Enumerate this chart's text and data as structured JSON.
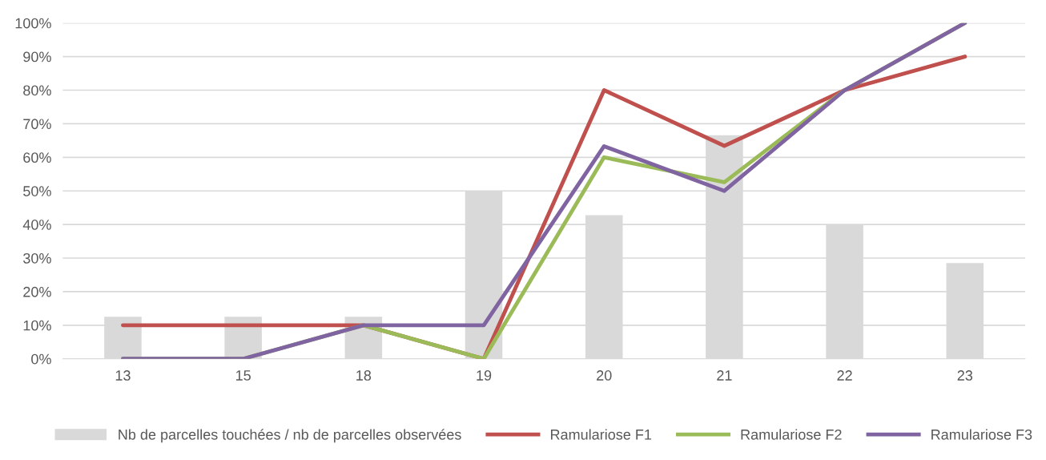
{
  "chart_data": {
    "type": "line",
    "categories": [
      "13",
      "15",
      "18",
      "19",
      "20",
      "21",
      "22",
      "23"
    ],
    "series": [
      {
        "name": "Nb de parcelles touchées / nb de parcelles observées",
        "type": "bar",
        "color": "#d9d9d9",
        "values": [
          12.5,
          12.5,
          12.5,
          50,
          42.8,
          66.6,
          40,
          28.5
        ]
      },
      {
        "name": "Ramulariose F1",
        "color": "#c0504d",
        "values": [
          10,
          10,
          10,
          0,
          80,
          63.4,
          80,
          90
        ]
      },
      {
        "name": "Ramulariose F2",
        "color": "#9bbb59",
        "values": [
          0,
          0,
          10,
          0,
          60,
          52.6,
          80,
          100
        ]
      },
      {
        "name": "Ramulariose F3",
        "color": "#8064a2",
        "values": [
          0,
          0,
          10,
          10,
          63.3,
          50,
          80,
          100
        ]
      }
    ],
    "ylim": [
      0,
      100
    ],
    "yticks": [
      {
        "value": 0,
        "label": "0%"
      },
      {
        "value": 10,
        "label": "10%"
      },
      {
        "value": 20,
        "label": "20%"
      },
      {
        "value": 30,
        "label": "30%"
      },
      {
        "value": 40,
        "label": "40%"
      },
      {
        "value": 50,
        "label": "50%"
      },
      {
        "value": 60,
        "label": "60%"
      },
      {
        "value": 70,
        "label": "70%"
      },
      {
        "value": 80,
        "label": "80%"
      },
      {
        "value": 90,
        "label": "90%"
      },
      {
        "value": 100,
        "label": "100%"
      }
    ],
    "grid": "y",
    "legend": "bottom",
    "marker": "none",
    "line_style": "solid"
  }
}
